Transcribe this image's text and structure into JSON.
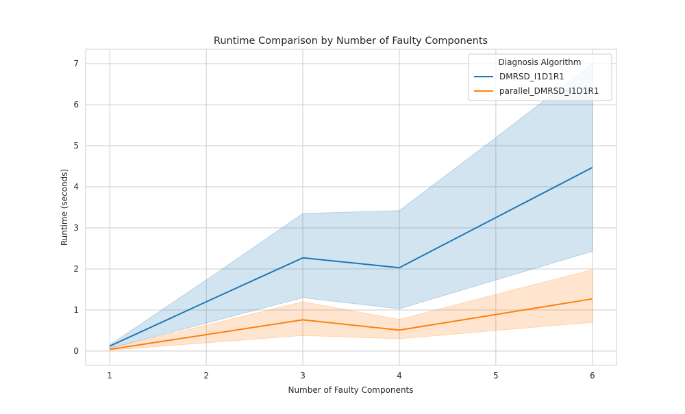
{
  "chart_data": {
    "type": "line",
    "title": "Runtime Comparison by Number of Faulty Components",
    "xlabel": "Number of Faulty Components",
    "ylabel": "Runtime (seconds)",
    "x": [
      1,
      2,
      3,
      4,
      5,
      6
    ],
    "xlim": [
      0.75,
      6.25
    ],
    "ylim": [
      -0.35,
      7.35
    ],
    "xticks": [
      1,
      2,
      3,
      4,
      5,
      6
    ],
    "yticks": [
      0,
      1,
      2,
      3,
      4,
      5,
      6,
      7
    ],
    "grid": true,
    "legend": {
      "title": "Diagnosis Algorithm",
      "placement": "top-right"
    },
    "series": [
      {
        "name": "DMRSD_I1D1R1",
        "color": "#1f77b4",
        "values": [
          0.12,
          1.2,
          2.27,
          2.03,
          3.25,
          4.47
        ],
        "ci_lower": [
          0.07,
          0.68,
          1.3,
          1.03,
          1.73,
          2.43
        ],
        "ci_upper": [
          0.15,
          1.73,
          3.35,
          3.42,
          5.2,
          7.0
        ]
      },
      {
        "name": "parallel_DMRSD_I1D1R1",
        "color": "#ff7f0e",
        "values": [
          0.04,
          0.4,
          0.76,
          0.51,
          0.89,
          1.27
        ],
        "ci_lower": [
          0.02,
          0.2,
          0.38,
          0.3,
          0.5,
          0.7
        ],
        "ci_upper": [
          0.07,
          0.63,
          1.2,
          0.77,
          1.38,
          1.98
        ]
      }
    ]
  }
}
